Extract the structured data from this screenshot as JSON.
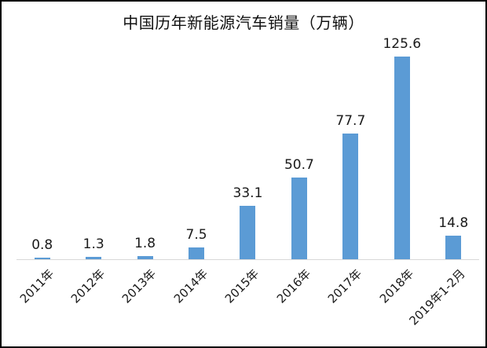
{
  "chart_data": {
    "type": "bar",
    "title": "中国历年新能源汽车销量（万辆）",
    "categories": [
      "2011年",
      "2012年",
      "2013年",
      "2014年",
      "2015年",
      "2016年",
      "2017年",
      "2018年",
      "2019年1-2月"
    ],
    "values": [
      0.8,
      1.3,
      1.8,
      7.5,
      33.1,
      50.7,
      77.7,
      125.6,
      14.8
    ],
    "value_labels": [
      "0.8",
      "1.3",
      "1.8",
      "7.5",
      "33.1",
      "50.7",
      "77.7",
      "125.6",
      "14.8"
    ],
    "xlabel": "",
    "ylabel": "",
    "ylim": [
      0,
      140
    ],
    "grid": false,
    "legend": false,
    "data_labels": true,
    "x_tick_rotation_deg": 45,
    "colors": {
      "bar": "#5B9BD5",
      "text": "#1A1A1A",
      "axis_line": "#D8D8D8",
      "background": "#FFFFFF",
      "frame_border": "#000000"
    }
  }
}
